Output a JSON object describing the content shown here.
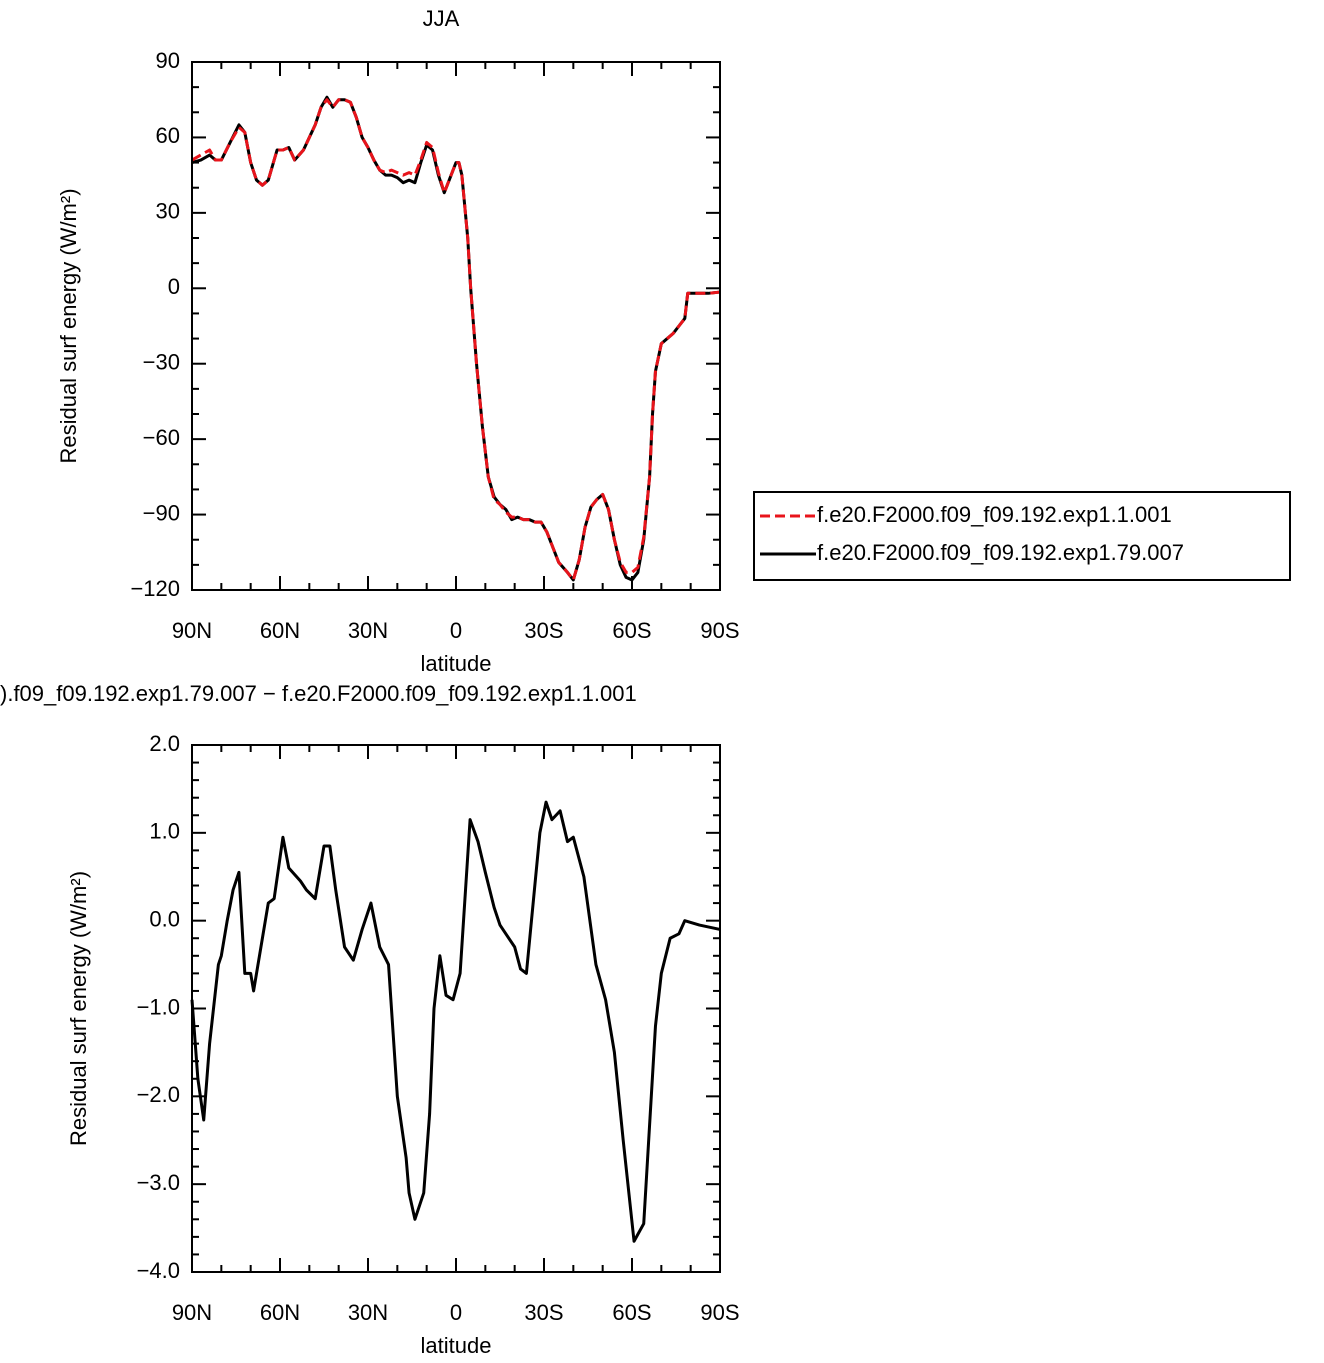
{
  "chart_data": [
    {
      "type": "line",
      "title": "JJA",
      "x_label": "latitude",
      "y_label": "Residual surf energy (W/m²)",
      "x": [
        90,
        87,
        84,
        82,
        80,
        77,
        74,
        72,
        70,
        68,
        66,
        64,
        61,
        59,
        57,
        55,
        52,
        50,
        48,
        46,
        44,
        42,
        40,
        38,
        36,
        34,
        32,
        30,
        28,
        26,
        24,
        22,
        20,
        18,
        16,
        14,
        12,
        10,
        8,
        6,
        4,
        2,
        0,
        -1,
        -2,
        -4,
        -5,
        -7,
        -9,
        -11,
        -13,
        -15,
        -17,
        -19,
        -21,
        -23,
        -25,
        -27,
        -29,
        -31,
        -33,
        -35,
        -38,
        -40,
        -42,
        -44,
        -46,
        -48,
        -50,
        -52,
        -54,
        -56,
        -58,
        -60,
        -62,
        -64,
        -66,
        -67,
        -68,
        -70,
        -72,
        -74,
        -76,
        -78,
        -79,
        -82,
        -86,
        -90
      ],
      "series": [
        {
          "name": "f.e20.F2000.f09_f09.192.exp1.1.001",
          "color": "#e8141b",
          "line_style": "dashed",
          "values": [
            51,
            53,
            55,
            51,
            51,
            58,
            64,
            62,
            50,
            43,
            41,
            43,
            55,
            55,
            56,
            51,
            55,
            60,
            65,
            72,
            75,
            72,
            75,
            75,
            74,
            68,
            60,
            56,
            51,
            47,
            46,
            47,
            46,
            45,
            46,
            45,
            51,
            58,
            56,
            46,
            38,
            44,
            50,
            50,
            45,
            20,
            0,
            -30,
            -55,
            -75,
            -84,
            -86,
            -89,
            -91,
            -91,
            -92,
            -92,
            -93,
            -93,
            -97,
            -103,
            -109,
            -113,
            -116,
            -108,
            -95,
            -87,
            -84,
            -82,
            -88,
            -100,
            -109,
            -113,
            -113,
            -111,
            -99,
            -75,
            -50,
            -33,
            -22,
            -20,
            -18,
            -15,
            -12,
            -2,
            -2,
            -2,
            -1.5
          ]
        },
        {
          "name": "f.e20.F2000.f09_f09.192.exp1.79.007",
          "color": "#000000",
          "line_style": "solid",
          "values": [
            50,
            51,
            53,
            51,
            51,
            58,
            65,
            62,
            50,
            43,
            41,
            43,
            55,
            55,
            56,
            51,
            55,
            60,
            65,
            72,
            76,
            72,
            75,
            75,
            74,
            68,
            60,
            56,
            51,
            47,
            45,
            45,
            44,
            42,
            43,
            42,
            50,
            57,
            55,
            45,
            38,
            44,
            50,
            50,
            45,
            20,
            0,
            -30,
            -55,
            -75,
            -83,
            -86,
            -88,
            -92,
            -91,
            -92,
            -92,
            -93,
            -93,
            -97,
            -103,
            -109,
            -113,
            -116,
            -108,
            -95,
            -87,
            -84,
            -82,
            -88,
            -100,
            -110,
            -115,
            -116,
            -113,
            -100,
            -75,
            -50,
            -33,
            -22,
            -20,
            -18,
            -15,
            -12,
            -2,
            -2,
            -2,
            -1.5
          ]
        }
      ],
      "xlim": [
        90,
        -90
      ],
      "xticks": [
        {
          "value": 90,
          "label": "90N"
        },
        {
          "value": 60,
          "label": "60N"
        },
        {
          "value": 30,
          "label": "30N"
        },
        0,
        {
          "value": -30,
          "label": "30S"
        },
        {
          "value": -60,
          "label": "60S"
        },
        {
          "value": -90,
          "label": "90S"
        }
      ],
      "ylim": [
        -120,
        90
      ],
      "yticks": [
        90,
        60,
        30,
        0,
        {
          "value": -30,
          "label": "−30"
        },
        {
          "value": -60,
          "label": "−60"
        },
        {
          "value": -90,
          "label": "−90"
        },
        {
          "value": -120,
          "label": "−120"
        }
      ],
      "legend": "right"
    },
    {
      "type": "line",
      "title": ").f09_f09.192.exp1.79.007 − f.e20.F2000.f09_f09.192.exp1.1.001",
      "x_label": "latitude",
      "y_label": "Residual surf energy (W/m²)",
      "x": [
        90,
        88,
        86,
        84,
        81,
        80,
        78,
        76,
        74,
        72,
        70,
        69,
        66,
        64,
        62,
        59,
        57,
        53,
        51,
        48,
        45,
        43,
        41,
        38,
        35,
        32,
        29,
        26,
        23,
        20,
        17,
        16,
        14,
        11,
        9,
        7.5,
        5.5,
        3.4,
        1,
        -1.4,
        -4.8,
        -7.5,
        -10,
        -13,
        -15,
        -20,
        -22,
        -24,
        -28.6,
        -30.7,
        -32.7,
        -35.5,
        -38,
        -40,
        -43.6,
        -47.7,
        -51,
        -54,
        -57,
        -60.7,
        -64,
        -68,
        -70,
        -73,
        -76,
        -78,
        -83,
        -90
      ],
      "series": [
        {
          "color": "#000000",
          "line_style": "solid",
          "values": [
            -0.9,
            -1.8,
            -2.27,
            -1.4,
            -0.5,
            -0.4,
            0.0,
            0.35,
            0.55,
            -0.6,
            -0.6,
            -0.8,
            -0.2,
            0.2,
            0.25,
            0.95,
            0.6,
            0.45,
            0.35,
            0.25,
            0.85,
            0.85,
            0.35,
            -0.3,
            -0.45,
            -0.1,
            0.2,
            -0.3,
            -0.5,
            -2.0,
            -2.7,
            -3.1,
            -3.4,
            -3.1,
            -2.2,
            -1.0,
            -0.4,
            -0.85,
            -0.9,
            -0.6,
            1.15,
            0.9,
            0.55,
            0.15,
            -0.05,
            -0.3,
            -0.55,
            -0.6,
            1.0,
            1.35,
            1.15,
            1.25,
            0.9,
            0.95,
            0.5,
            -0.5,
            -0.9,
            -1.5,
            -2.5,
            -3.65,
            -3.45,
            -1.2,
            -0.6,
            -0.2,
            -0.15,
            0.0,
            -0.05,
            -0.1
          ]
        }
      ],
      "xlim": [
        90,
        -90
      ],
      "xticks": [
        {
          "value": 90,
          "label": "90N"
        },
        {
          "value": 60,
          "label": "60N"
        },
        {
          "value": 30,
          "label": "30N"
        },
        0,
        {
          "value": -30,
          "label": "30S"
        },
        {
          "value": -60,
          "label": "60S"
        },
        {
          "value": -90,
          "label": "90S"
        }
      ],
      "ylim": [
        -4,
        2
      ],
      "yticks": [
        {
          "value": 2,
          "label": "2.0"
        },
        {
          "value": 1,
          "label": "1.0"
        },
        {
          "value": 0,
          "label": "0.0"
        },
        {
          "value": -1,
          "label": "−1.0"
        },
        {
          "value": -2,
          "label": "−2.0"
        },
        {
          "value": -3,
          "label": "−3.0"
        },
        {
          "value": -4,
          "label": "−4.0"
        }
      ]
    }
  ]
}
